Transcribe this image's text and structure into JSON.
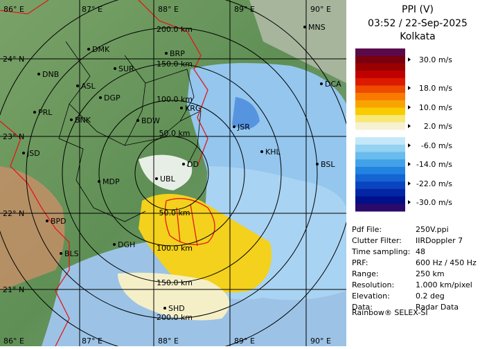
{
  "header": {
    "title": "PPI (V)",
    "time": "03:52 / 22-Sep-2025",
    "site": "Kolkata"
  },
  "map": {
    "lon_labels_top": [
      "86° E",
      "87° E",
      "88° E",
      "89° E",
      "90° E"
    ],
    "lon_labels_bottom": [
      "86° E",
      "87° E",
      "88° E",
      "89° E",
      "90° E"
    ],
    "lat_labels": [
      "24° N",
      "23° N",
      "22° N",
      "21° N"
    ],
    "range_labels_north": [
      "200.0 km",
      "150.0 km",
      "100.0 km",
      "50.0 km"
    ],
    "range_labels_south": [
      "50.0 km",
      "100.0 km",
      "150.0 km",
      "200.0 km"
    ],
    "stations": [
      "MNS",
      "DMK",
      "BRP",
      "DNB",
      "SUR",
      "ASL",
      "DGP",
      "DCA",
      "PRL",
      "BNK",
      "KRG",
      "BDW",
      "JSR",
      "JSD",
      "KHL",
      "BSL",
      "MDP",
      "DD",
      "UBL",
      "BPD",
      "DGH",
      "BLS",
      "SHD"
    ]
  },
  "legend": {
    "labels": [
      "30.0 m/s",
      "18.0 m/s",
      "10.0 m/s",
      "2.0 m/s",
      "-6.0 m/s",
      "-14.0 m/s",
      "-22.0 m/s",
      "-30.0 m/s"
    ]
  },
  "info": {
    "rows": [
      [
        "Pdf File:",
        "250V.ppi"
      ],
      [
        "Clutter Filter:",
        "IIRDoppler 7"
      ],
      [
        "Time sampling:",
        "48"
      ],
      [
        "PRF:",
        "600 Hz / 450 Hz"
      ],
      [
        "Range:",
        "250 km"
      ],
      [
        "Resolution:",
        "1.000 km/pixel"
      ],
      [
        "Elevation:",
        "0.2 deg"
      ],
      [
        "Data:",
        "Radar Data"
      ]
    ]
  },
  "footer": "Rainbow® SELEX-SI"
}
